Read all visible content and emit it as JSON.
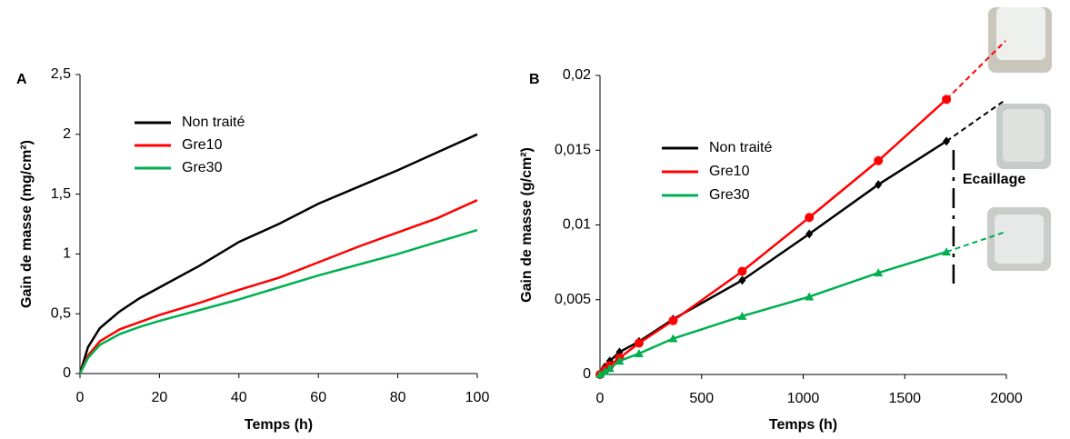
{
  "chart_data": [
    {
      "type": "line",
      "panel": "A",
      "ylabel": "Gain de masse (mg/cm²)",
      "xlabel": "Temps (h)",
      "xlim": [
        0,
        100
      ],
      "xticks": [
        0,
        20,
        40,
        60,
        80,
        100
      ],
      "ylim": [
        0,
        2.5
      ],
      "yticks": [
        0,
        {
          "value": 0.5,
          "label": "0,5"
        },
        1,
        {
          "value": 1.5,
          "label": "1,5"
        },
        2,
        {
          "value": 2.5,
          "label": "2,5"
        }
      ],
      "x": [
        0,
        2,
        5,
        10,
        15,
        20,
        30,
        40,
        50,
        60,
        70,
        80,
        90,
        100
      ],
      "series": [
        {
          "name": "Non traité",
          "color": "#000000",
          "values": [
            0,
            0.22,
            0.38,
            0.52,
            0.63,
            0.72,
            0.9,
            1.1,
            1.25,
            1.42,
            1.56,
            1.7,
            1.85,
            2.0
          ]
        },
        {
          "name": "Gre10",
          "color": "#ff0000",
          "values": [
            0,
            0.15,
            0.27,
            0.37,
            0.43,
            0.49,
            0.59,
            0.7,
            0.8,
            0.93,
            1.06,
            1.18,
            1.3,
            1.45
          ]
        },
        {
          "name": "Gre30",
          "color": "#00b050",
          "values": [
            0,
            0.13,
            0.24,
            0.33,
            0.39,
            0.44,
            0.53,
            0.62,
            0.72,
            0.82,
            0.91,
            1.0,
            1.1,
            1.2
          ]
        }
      ]
    },
    {
      "type": "line",
      "panel": "B",
      "ylabel": "Gain de masse (g/cm²)",
      "xlabel": "Temps (h)",
      "xlim": [
        0,
        2000
      ],
      "xticks": [
        0,
        500,
        1000,
        1500,
        2000
      ],
      "ylim": [
        0,
        0.02
      ],
      "yticks": [
        0,
        {
          "value": 0.005,
          "label": "0,005"
        },
        {
          "value": 0.01,
          "label": "0,01"
        },
        {
          "value": 0.015,
          "label": "0,015"
        },
        {
          "value": 0.02,
          "label": "0,02"
        }
      ],
      "x": [
        0,
        24,
        48,
        96,
        192,
        360,
        700,
        1030,
        1370,
        1705
      ],
      "series": [
        {
          "name": "Non traité",
          "color": "#000000",
          "marker": "diamond",
          "values": [
            0,
            0.0005,
            0.0009,
            0.0015,
            0.0022,
            0.0037,
            0.0063,
            0.0094,
            0.0127,
            0.0156
          ]
        },
        {
          "name": "Gre10",
          "color": "#ff0000",
          "marker": "circle",
          "values": [
            0,
            0.0003,
            0.0006,
            0.0011,
            0.0021,
            0.0036,
            0.0069,
            0.0105,
            0.0143,
            0.0184
          ]
        },
        {
          "name": "Gre30",
          "color": "#00b050",
          "marker": "triangle",
          "values": [
            0,
            0.0002,
            0.0004,
            0.0009,
            0.0014,
            0.0024,
            0.0039,
            0.0052,
            0.0068,
            0.0082
          ]
        }
      ],
      "annotation": {
        "text": "Ecaillage",
        "x": 1740
      }
    }
  ]
}
